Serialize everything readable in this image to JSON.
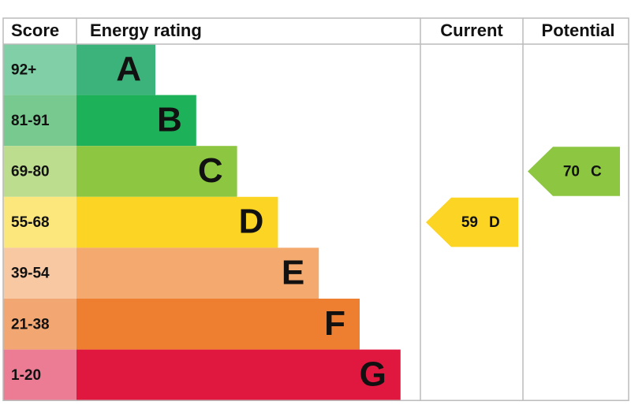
{
  "header": {
    "score": "Score",
    "rating": "Energy rating",
    "current": "Current",
    "potential": "Potential"
  },
  "bands": [
    {
      "score": "92+",
      "letter": "A",
      "color": "#3cb37a",
      "light": "#80cfa6"
    },
    {
      "score": "81-91",
      "letter": "B",
      "color": "#1db259",
      "light": "#78c98f"
    },
    {
      "score": "69-80",
      "letter": "C",
      "color": "#8dc641",
      "light": "#bcdc8e"
    },
    {
      "score": "55-68",
      "letter": "D",
      "color": "#fbd424",
      "light": "#fbe77c"
    },
    {
      "score": "39-54",
      "letter": "E",
      "color": "#f4a96e",
      "light": "#f8c8a2"
    },
    {
      "score": "21-38",
      "letter": "F",
      "color": "#ee7f31",
      "light": "#f2a772"
    },
    {
      "score": "1-20",
      "letter": "G",
      "color": "#e0183f",
      "light": "#ec7b94"
    }
  ],
  "current": {
    "score": 59,
    "rating": "D"
  },
  "potential": {
    "score": 70,
    "rating": "C"
  }
}
